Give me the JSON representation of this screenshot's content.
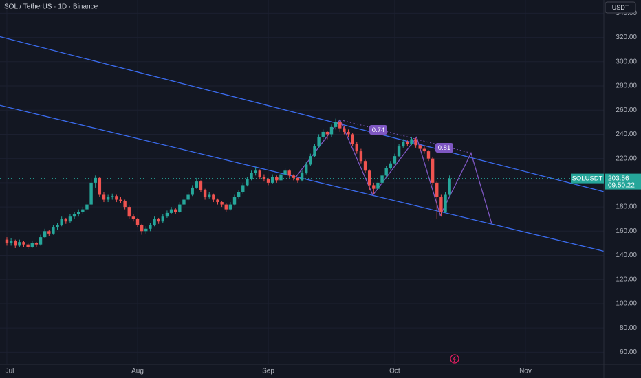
{
  "chart_data": {
    "type": "candlestick",
    "title": "SOL / TetherUS · 1D · Binance",
    "currency": "USDT",
    "up_color": "#26a69a",
    "down_color": "#ef5350",
    "grid": true,
    "ylim": [
      50,
      351
    ],
    "yticks": [
      {
        "value": 60,
        "label": "60.00"
      },
      {
        "value": 80,
        "label": "80.00"
      },
      {
        "value": 100,
        "label": "100.00"
      },
      {
        "value": 120,
        "label": "120.00"
      },
      {
        "value": 140,
        "label": "140.00"
      },
      {
        "value": 160,
        "label": "160.00"
      },
      {
        "value": 180,
        "label": "180.00"
      },
      {
        "value": 200,
        "label": "200.00"
      },
      {
        "value": 220,
        "label": "220.00"
      },
      {
        "value": 240,
        "label": "240.00"
      },
      {
        "value": 260,
        "label": "260.00"
      },
      {
        "value": 280,
        "label": "280.00"
      },
      {
        "value": 300,
        "label": "300.00"
      },
      {
        "value": 320,
        "label": "320.00"
      },
      {
        "value": 340,
        "label": "340.00"
      }
    ],
    "xlim": [
      -1.63,
      141.6
    ],
    "xticks": [
      {
        "value": 0,
        "label": "Jul"
      },
      {
        "value": 31,
        "label": "Aug"
      },
      {
        "value": 62,
        "label": "Sep"
      },
      {
        "value": 92,
        "label": "Oct"
      },
      {
        "value": 123,
        "label": "Nov"
      }
    ],
    "ohlc": [
      [
        153,
        155,
        148,
        150
      ],
      [
        150,
        154,
        148,
        152
      ],
      [
        152,
        153,
        146,
        148
      ],
      [
        148,
        153,
        147,
        151
      ],
      [
        151,
        152,
        147,
        149
      ],
      [
        149,
        150,
        145,
        147
      ],
      [
        147,
        152,
        146,
        150
      ],
      [
        150,
        151,
        147,
        149
      ],
      [
        149,
        157,
        148,
        155
      ],
      [
        155,
        162,
        154,
        160
      ],
      [
        160,
        161,
        156,
        158
      ],
      [
        158,
        165,
        157,
        163
      ],
      [
        163,
        167,
        161,
        165
      ],
      [
        165,
        172,
        164,
        170
      ],
      [
        170,
        171,
        166,
        168
      ],
      [
        168,
        174,
        167,
        172
      ],
      [
        172,
        176,
        170,
        174
      ],
      [
        174,
        178,
        172,
        176
      ],
      [
        176,
        180,
        174,
        178
      ],
      [
        178,
        184,
        176,
        182
      ],
      [
        182,
        204,
        181,
        200
      ],
      [
        200,
        206,
        196,
        204
      ],
      [
        204,
        205,
        188,
        190
      ],
      [
        190,
        192,
        184,
        186
      ],
      [
        186,
        190,
        184,
        188
      ],
      [
        188,
        191,
        186,
        189
      ],
      [
        189,
        190,
        184,
        186
      ],
      [
        186,
        188,
        183,
        185
      ],
      [
        185,
        186,
        178,
        180
      ],
      [
        180,
        181,
        170,
        172
      ],
      [
        172,
        174,
        168,
        170
      ],
      [
        170,
        171,
        163,
        165
      ],
      [
        165,
        166,
        157,
        160
      ],
      [
        160,
        164,
        158,
        162
      ],
      [
        162,
        167,
        160,
        165
      ],
      [
        165,
        172,
        164,
        170
      ],
      [
        170,
        171,
        166,
        168
      ],
      [
        168,
        174,
        167,
        172
      ],
      [
        172,
        177,
        171,
        175
      ],
      [
        175,
        180,
        174,
        178
      ],
      [
        178,
        179,
        174,
        176
      ],
      [
        176,
        184,
        175,
        182
      ],
      [
        182,
        188,
        181,
        186
      ],
      [
        186,
        192,
        185,
        190
      ],
      [
        190,
        198,
        189,
        196
      ],
      [
        196,
        204,
        195,
        201
      ],
      [
        201,
        202,
        192,
        194
      ],
      [
        194,
        195,
        186,
        188
      ],
      [
        188,
        192,
        187,
        190
      ],
      [
        190,
        191,
        184,
        186
      ],
      [
        186,
        187,
        182,
        184
      ],
      [
        184,
        185,
        180,
        182
      ],
      [
        182,
        183,
        176,
        178
      ],
      [
        178,
        184,
        177,
        182
      ],
      [
        182,
        190,
        181,
        188
      ],
      [
        188,
        194,
        187,
        192
      ],
      [
        192,
        200,
        191,
        198
      ],
      [
        198,
        205,
        197,
        203
      ],
      [
        203,
        210,
        202,
        208
      ],
      [
        208,
        213,
        206,
        210
      ],
      [
        210,
        211,
        203,
        205
      ],
      [
        205,
        207,
        201,
        203
      ],
      [
        203,
        204,
        198,
        200
      ],
      [
        200,
        207,
        199,
        205
      ],
      [
        205,
        206,
        200,
        202
      ],
      [
        202,
        209,
        201,
        207
      ],
      [
        207,
        212,
        206,
        210
      ],
      [
        210,
        211,
        204,
        206
      ],
      [
        206,
        207,
        202,
        204
      ],
      [
        204,
        205,
        200,
        202
      ],
      [
        202,
        210,
        201,
        208
      ],
      [
        208,
        217,
        207,
        215
      ],
      [
        215,
        224,
        214,
        222
      ],
      [
        222,
        232,
        221,
        230
      ],
      [
        230,
        240,
        229,
        238
      ],
      [
        238,
        244,
        236,
        242
      ],
      [
        242,
        243,
        236,
        240
      ],
      [
        240,
        248,
        238,
        246
      ],
      [
        246,
        253,
        244,
        250
      ],
      [
        250,
        251,
        242,
        245
      ],
      [
        245,
        247,
        240,
        242
      ],
      [
        242,
        244,
        238,
        240
      ],
      [
        240,
        241,
        230,
        232
      ],
      [
        232,
        234,
        224,
        226
      ],
      [
        226,
        228,
        216,
        218
      ],
      [
        218,
        219,
        208,
        210
      ],
      [
        210,
        211,
        194,
        198
      ],
      [
        198,
        200,
        191,
        195
      ],
      [
        195,
        202,
        194,
        200
      ],
      [
        200,
        208,
        199,
        206
      ],
      [
        206,
        214,
        205,
        212
      ],
      [
        212,
        218,
        211,
        216
      ],
      [
        216,
        224,
        215,
        222
      ],
      [
        222,
        232,
        221,
        230
      ],
      [
        230,
        236,
        229,
        234
      ],
      [
        234,
        235,
        230,
        232
      ],
      [
        232,
        238,
        231,
        236
      ],
      [
        236,
        237,
        229,
        231
      ],
      [
        231,
        232,
        226,
        228
      ],
      [
        228,
        230,
        224,
        226
      ],
      [
        226,
        227,
        218,
        220
      ],
      [
        220,
        221,
        198,
        200
      ],
      [
        200,
        201,
        170,
        188
      ],
      [
        188,
        190,
        172,
        176
      ],
      [
        176,
        192,
        175,
        190
      ],
      [
        190,
        206,
        189,
        203.56
      ]
    ],
    "last_price": {
      "symbol": "SOLUSDT",
      "value": 203.56,
      "countdown": "09:50:22",
      "color": "#26a69a"
    },
    "trend_lines": [
      {
        "color": "#3b6cf0",
        "style": "solid",
        "points": [
          [
            -1.63,
            320.6
          ],
          [
            141.6,
            192.6
          ]
        ]
      },
      {
        "color": "#3b6cf0",
        "style": "solid",
        "points": [
          [
            -1.63,
            264
          ],
          [
            141.6,
            143.4
          ]
        ]
      },
      {
        "color": "#7e57c2",
        "style": "dotted",
        "points": [
          [
            79,
            252
          ],
          [
            110.1,
            224.6
          ]
        ]
      },
      {
        "color": "#7e57c2",
        "style": "solid",
        "points": [
          [
            68.5,
            204.6
          ],
          [
            79,
            252
          ],
          [
            86.8,
            189.7
          ],
          [
            97.2,
            237.7
          ],
          [
            102.8,
            173
          ],
          [
            110.1,
            224.6
          ],
          [
            115,
            166.3
          ]
        ]
      }
    ],
    "ratio_labels": [
      "0.74",
      "0.81"
    ]
  }
}
